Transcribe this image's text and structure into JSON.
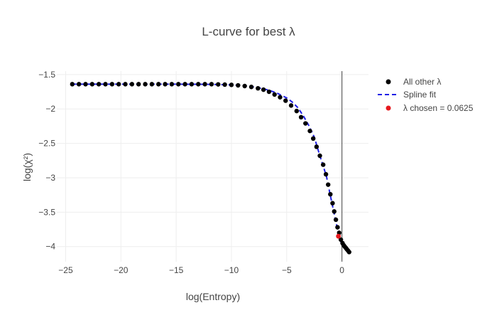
{
  "chart_data": {
    "type": "scatter",
    "title": "L-curve for best λ",
    "xlabel": "log(Entropy)",
    "ylabel": "log(χ²)",
    "xlim": [
      -25.8,
      2.4
    ],
    "ylim": [
      -4.22,
      -1.45
    ],
    "x_ticks": [
      -25,
      -20,
      -15,
      -10,
      -5,
      0
    ],
    "x_tick_labels": [
      "−25",
      "−20",
      "−15",
      "−10",
      "−5",
      "0"
    ],
    "y_ticks": [
      -1.5,
      -2,
      -2.5,
      -3,
      -3.5,
      -4
    ],
    "y_tick_labels": [
      "−1.5",
      "−2",
      "−2.5",
      "−3",
      "−3.5",
      "−4"
    ],
    "grid": true,
    "vertical_line_x": 0,
    "legend_position": "top-right",
    "colors": {
      "points": "#000000",
      "spline": "#1f1fe6",
      "chosen": "#e6191e",
      "grid": "#eeeeee",
      "vline": "#444444",
      "text": "#444444"
    },
    "series": [
      {
        "name": "All other λ",
        "style": "markers",
        "x": [
          -24.4,
          -23.8,
          -23.2,
          -22.6,
          -22.0,
          -21.4,
          -20.8,
          -20.2,
          -19.6,
          -19.0,
          -18.4,
          -17.8,
          -17.2,
          -16.6,
          -16.0,
          -15.4,
          -14.8,
          -14.2,
          -13.6,
          -13.0,
          -12.4,
          -11.8,
          -11.2,
          -10.6,
          -10.0,
          -9.4,
          -8.8,
          -8.2,
          -7.6,
          -7.1,
          -6.6,
          -6.1,
          -5.6,
          -5.1,
          -4.6,
          -4.1,
          -3.7,
          -3.3,
          -2.9,
          -2.6,
          -2.3,
          -2.0,
          -1.7,
          -1.45,
          -1.25,
          -1.05,
          -0.85,
          -0.7,
          -0.55,
          -0.4,
          -0.25,
          -0.1,
          0.05,
          0.15,
          0.25,
          0.35,
          0.45,
          0.55,
          0.65
        ],
        "y": [
          -1.64,
          -1.64,
          -1.64,
          -1.64,
          -1.64,
          -1.64,
          -1.64,
          -1.64,
          -1.64,
          -1.64,
          -1.64,
          -1.64,
          -1.64,
          -1.64,
          -1.64,
          -1.64,
          -1.64,
          -1.64,
          -1.64,
          -1.64,
          -1.64,
          -1.64,
          -1.643,
          -1.646,
          -1.65,
          -1.657,
          -1.667,
          -1.68,
          -1.7,
          -1.72,
          -1.75,
          -1.79,
          -1.83,
          -1.88,
          -1.95,
          -2.03,
          -2.12,
          -2.21,
          -2.32,
          -2.43,
          -2.55,
          -2.68,
          -2.81,
          -2.95,
          -3.1,
          -3.24,
          -3.37,
          -3.49,
          -3.61,
          -3.72,
          -3.8,
          -3.9,
          -3.95,
          -3.98,
          -4.0,
          -4.02,
          -4.04,
          -4.06,
          -4.08
        ]
      },
      {
        "name": "Spline fit",
        "style": "dashed-line",
        "x": [
          -24.4,
          -20,
          -15,
          -12,
          -10,
          -9,
          -8,
          -7,
          -6,
          -5,
          -4.5,
          -4,
          -3.5,
          -3,
          -2.5,
          -2,
          -1.7,
          -1.4,
          -1.1,
          -0.8,
          -0.5,
          -0.3,
          -0.1,
          0.1,
          0.3,
          0.5,
          0.65
        ],
        "y": [
          -1.64,
          -1.64,
          -1.64,
          -1.642,
          -1.65,
          -1.66,
          -1.68,
          -1.71,
          -1.76,
          -1.84,
          -1.9,
          -1.98,
          -2.1,
          -2.24,
          -2.41,
          -2.68,
          -2.83,
          -2.98,
          -3.22,
          -3.45,
          -3.68,
          -3.83,
          -3.93,
          -3.99,
          -4.03,
          -4.06,
          -4.08
        ]
      },
      {
        "name": "λ chosen = 0.0625",
        "style": "markers",
        "x": [
          -0.32
        ],
        "y": [
          -3.85
        ]
      }
    ]
  }
}
